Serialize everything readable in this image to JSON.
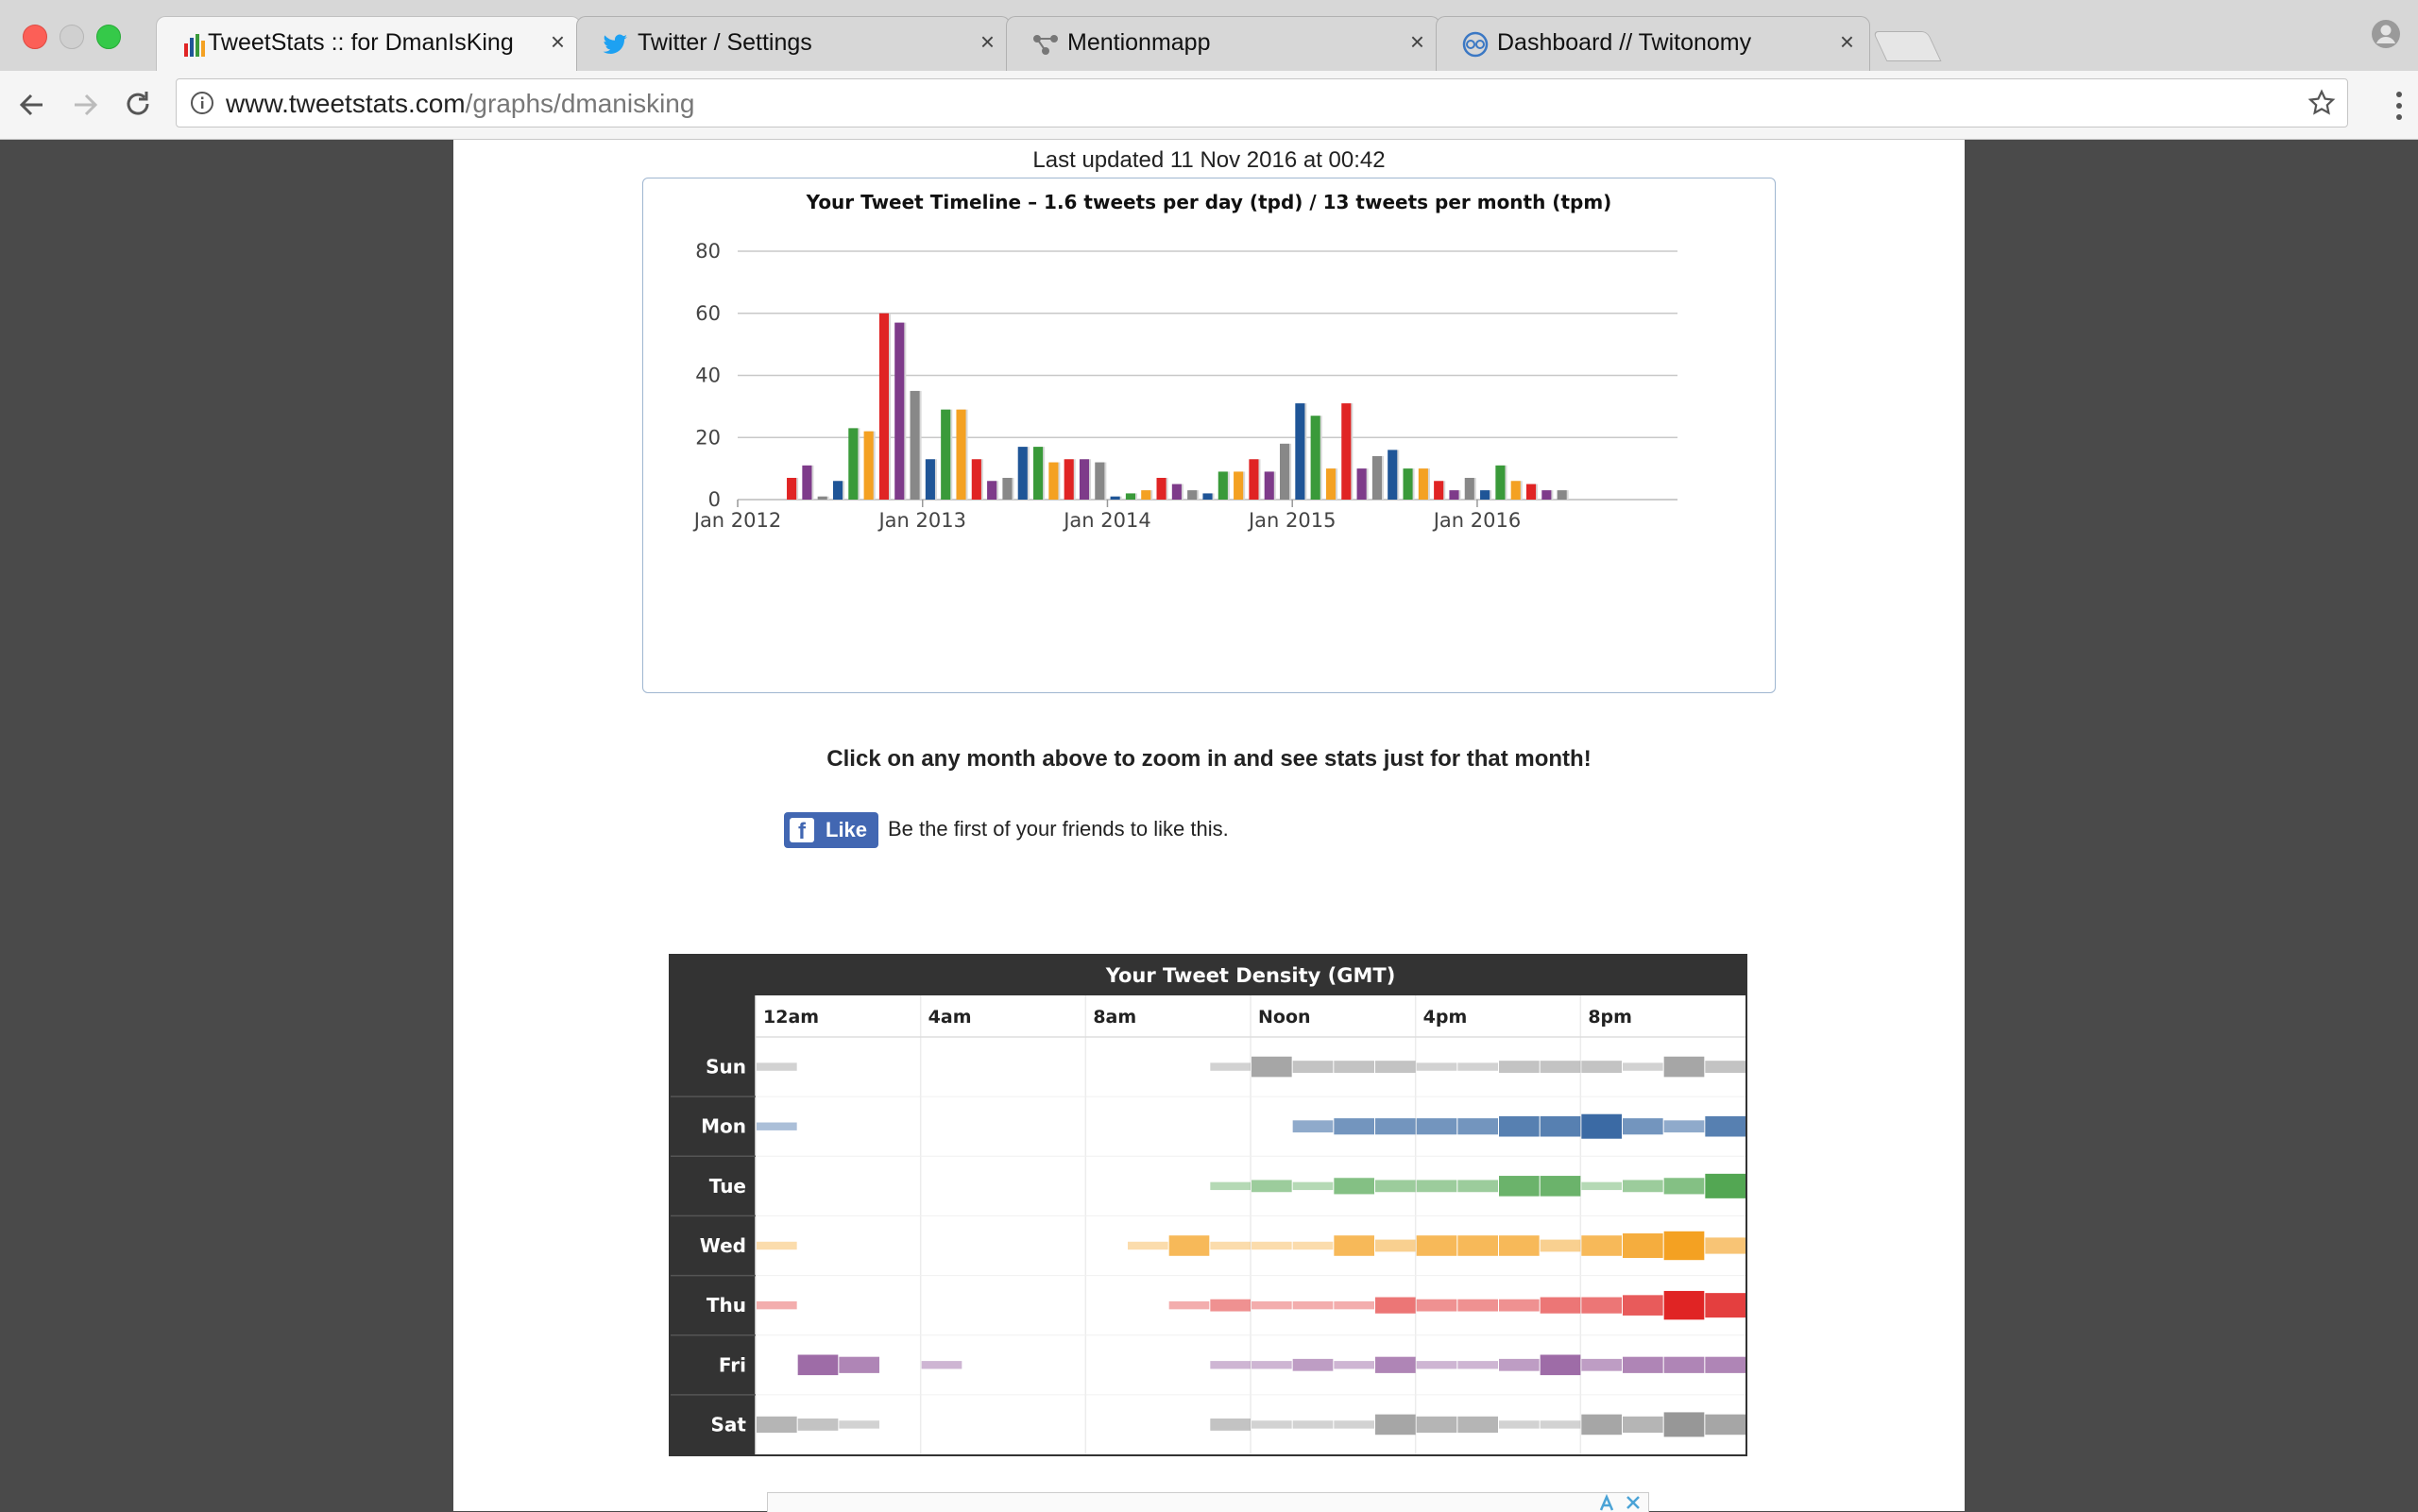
{
  "browser": {
    "tabs": [
      {
        "label": "TweetStats :: for DmanIsKing",
        "icon": "bar-chart-icon",
        "active": true
      },
      {
        "label": "Twitter / Settings",
        "icon": "twitter-bird-icon",
        "active": false
      },
      {
        "label": "Mentionmapp",
        "icon": "mentionmapp-icon",
        "active": false
      },
      {
        "label": "Dashboard // Twitonomy",
        "icon": "twitonomy-icon",
        "active": false
      }
    ],
    "close_glyph": "×",
    "url_host": "www.tweetstats.com",
    "url_path": "/graphs/dmanisking"
  },
  "page": {
    "last_updated": "Last updated 11 Nov 2016 at 00:42",
    "chart_hint": "Click on any month above to zoom in and see stats just for that month!",
    "fb_like_label": "Like",
    "fb_text": "Be the first of your friends to like this."
  },
  "colors": {
    "series": [
      "#1f5597",
      "#3a9a3a",
      "#f4a122",
      "#e02424",
      "#7e3b8a",
      "#888888"
    ]
  },
  "chart_data": [
    {
      "type": "bar",
      "title": "Your Tweet Timeline – 1.6 tweets per day (tpd) / 13 tweets per month (tpm)",
      "ylim": [
        0,
        80
      ],
      "yticks": [
        0,
        20,
        40,
        60,
        80
      ],
      "xticks": [
        "Jan 2012",
        "Jan 2013",
        "Jan 2014",
        "Jan 2015",
        "Jan 2016"
      ],
      "grid": true,
      "categories": [
        "2012-01",
        "2012-02",
        "2012-03",
        "2012-04",
        "2012-05",
        "2012-06",
        "2012-07",
        "2012-08",
        "2012-09",
        "2012-10",
        "2012-11",
        "2012-12",
        "2013-01",
        "2013-02",
        "2013-03",
        "2013-04",
        "2013-05",
        "2013-06",
        "2013-07",
        "2013-08",
        "2013-09",
        "2013-10",
        "2013-11",
        "2013-12",
        "2014-01",
        "2014-02",
        "2014-03",
        "2014-04",
        "2014-05",
        "2014-06",
        "2014-07",
        "2014-08",
        "2014-09",
        "2014-10",
        "2014-11",
        "2014-12",
        "2015-01",
        "2015-02",
        "2015-03",
        "2015-04",
        "2015-05",
        "2015-06",
        "2015-07",
        "2015-08",
        "2015-09",
        "2015-10",
        "2015-11",
        "2015-12",
        "2016-01",
        "2016-02",
        "2016-03",
        "2016-04",
        "2016-05",
        "2016-06",
        "2016-07",
        "2016-08",
        "2016-09",
        "2016-10",
        "2016-11"
      ],
      "values": [
        0,
        0,
        0,
        7,
        11,
        1,
        6,
        23,
        22,
        60,
        57,
        35,
        13,
        29,
        29,
        13,
        6,
        7,
        17,
        17,
        12,
        13,
        13,
        12,
        1,
        2,
        3,
        7,
        5,
        3,
        2,
        9,
        9,
        13,
        9,
        18,
        31,
        27,
        10,
        31,
        10,
        14,
        16,
        10,
        10,
        6,
        3,
        7,
        3,
        11,
        6,
        5,
        3,
        3,
        0,
        0,
        0,
        0,
        0
      ],
      "color_cycle": [
        "#1f5597",
        "#3a9a3a",
        "#f4a122",
        "#e02424",
        "#7e3b8a",
        "#888888"
      ]
    },
    {
      "type": "heatmap",
      "title": "Your Tweet Density (GMT)",
      "x_tick_labels": [
        "12am",
        "4am",
        "8am",
        "Noon",
        "4pm",
        "8pm"
      ],
      "x_tick_hours": [
        0,
        4,
        8,
        12,
        16,
        20
      ],
      "rows": [
        {
          "day": "Sun",
          "color": "#888888",
          "values": [
            1,
            0,
            0,
            0,
            0,
            0,
            0,
            0,
            0,
            0,
            0,
            1,
            4,
            2,
            2,
            2,
            1,
            1,
            2,
            2,
            2,
            1,
            4,
            2,
            1
          ]
        },
        {
          "day": "Mon",
          "color": "#1f5597",
          "values": [
            1,
            0,
            0,
            0,
            0,
            0,
            0,
            0,
            0,
            0,
            0,
            0,
            0,
            2,
            3,
            3,
            3,
            3,
            4,
            4,
            5,
            3,
            2,
            4,
            5
          ]
        },
        {
          "day": "Tue",
          "color": "#3a9a3a",
          "values": [
            0,
            0,
            0,
            0,
            0,
            0,
            0,
            0,
            0,
            0,
            0,
            1,
            2,
            1,
            3,
            2,
            2,
            2,
            4,
            4,
            1,
            2,
            3,
            5,
            6
          ]
        },
        {
          "day": "Wed",
          "color": "#f4a122",
          "values": [
            1,
            0,
            0,
            0,
            0,
            0,
            0,
            0,
            0,
            1,
            4,
            1,
            1,
            1,
            4,
            2,
            4,
            4,
            4,
            2,
            4,
            5,
            6,
            3,
            2
          ]
        },
        {
          "day": "Thu",
          "color": "#e02424",
          "values": [
            1,
            0,
            0,
            0,
            0,
            0,
            0,
            0,
            0,
            0,
            1,
            2,
            1,
            1,
            1,
            3,
            2,
            2,
            2,
            3,
            3,
            4,
            6,
            5,
            2
          ]
        },
        {
          "day": "Fri",
          "color": "#7e3b8a",
          "values": [
            0,
            4,
            3,
            0,
            1,
            0,
            0,
            0,
            0,
            0,
            0,
            1,
            1,
            2,
            1,
            3,
            1,
            1,
            2,
            4,
            2,
            3,
            3,
            3,
            6
          ]
        },
        {
          "day": "Sat",
          "color": "#888888",
          "values": [
            3,
            2,
            1,
            0,
            0,
            0,
            0,
            0,
            0,
            0,
            0,
            2,
            1,
            1,
            1,
            4,
            3,
            3,
            1,
            1,
            4,
            3,
            5,
            4,
            3
          ]
        }
      ]
    }
  ]
}
